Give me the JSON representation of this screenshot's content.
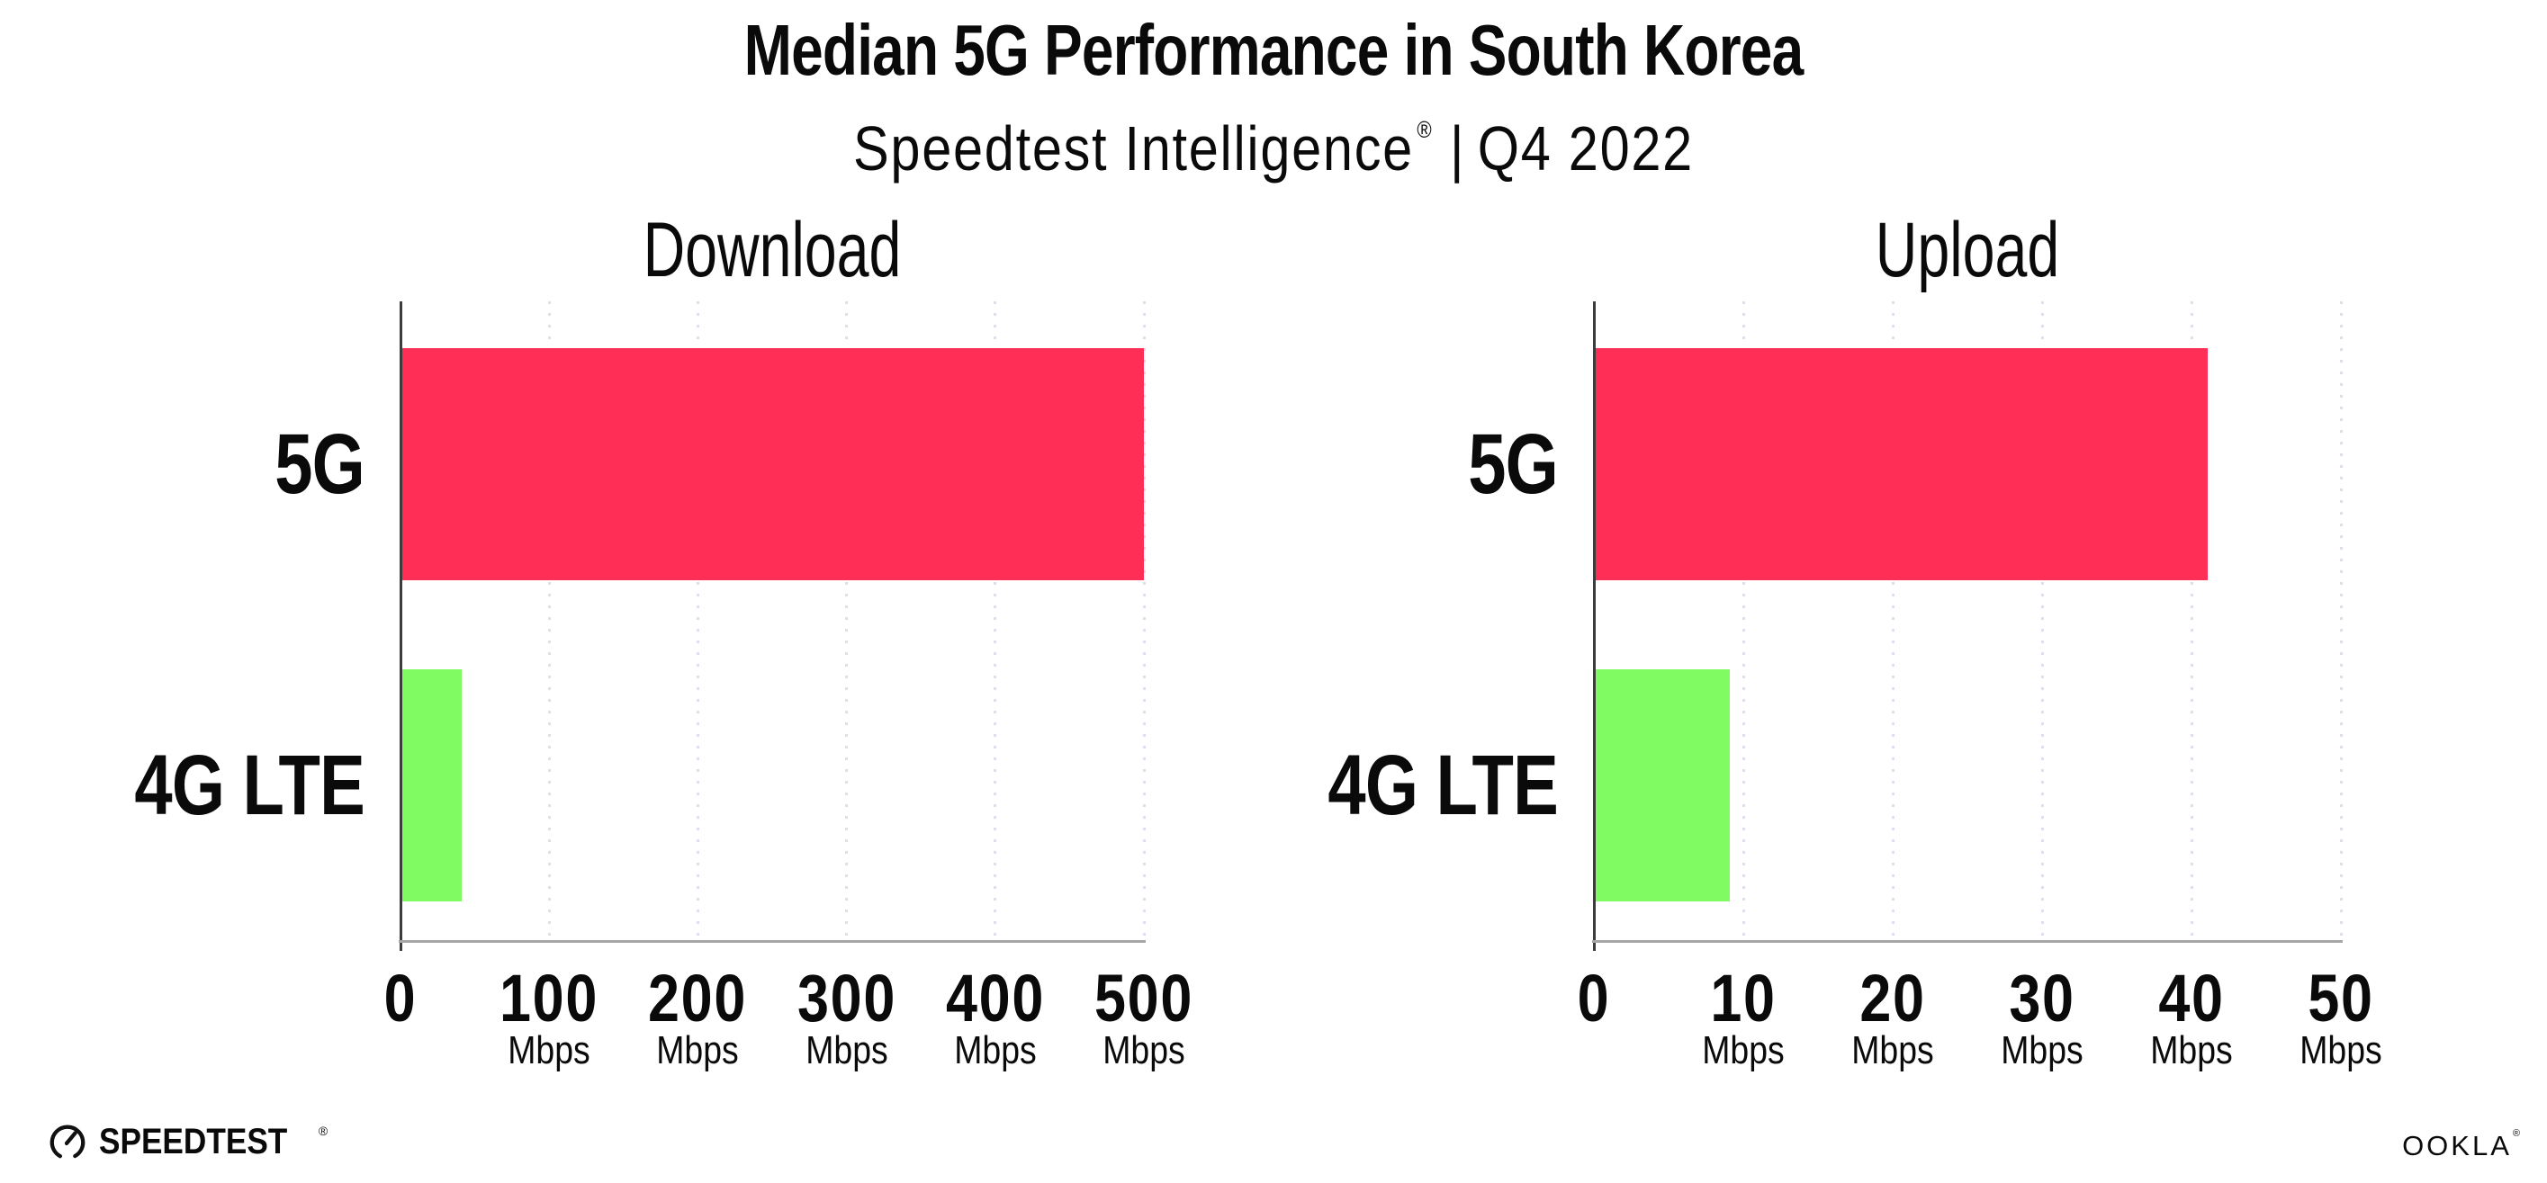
{
  "header": {
    "title": "Median 5G Performance in South Korea",
    "subtitle_brand": "Speedtest Intelligence",
    "registered_mark": "®",
    "subtitle_separator": "|",
    "subtitle_period": "Q4 2022"
  },
  "chart_data": [
    {
      "type": "bar",
      "orientation": "horizontal",
      "title": "Download",
      "categories": [
        "5G",
        "4G LTE"
      ],
      "values": [
        499,
        40
      ],
      "unit": "Mbps",
      "xlabel": "",
      "ylabel": "",
      "xlim": [
        0,
        500
      ],
      "ticks": [
        0,
        100,
        200,
        300,
        400,
        500
      ],
      "bar_colors": [
        "#FF2E56",
        "#80FB61"
      ],
      "grid": "dotted-vertical",
      "legend": "none"
    },
    {
      "type": "bar",
      "orientation": "horizontal",
      "title": "Upload",
      "categories": [
        "5G",
        "4G LTE"
      ],
      "values": [
        41,
        9
      ],
      "unit": "Mbps",
      "xlabel": "",
      "ylabel": "",
      "xlim": [
        0,
        50
      ],
      "ticks": [
        0,
        10,
        20,
        30,
        40,
        50
      ],
      "bar_colors": [
        "#FF2E56",
        "#80FB61"
      ],
      "grid": "dotted-vertical",
      "legend": "none"
    }
  ],
  "colors": {
    "bar_5g": "#FF2E56",
    "bar_4g_lte": "#80FB61",
    "gridline": "#DDE0EA",
    "y_axis": "#3c3c3c",
    "x_axis": "#a6a6a6",
    "text": "#0a0a0a",
    "background": "#ffffff"
  },
  "footer": {
    "speedtest_wordmark": "SPEEDTEST",
    "speedtest_mark": "®",
    "ookla_wordmark": "OOKLA",
    "ookla_mark": "®"
  }
}
